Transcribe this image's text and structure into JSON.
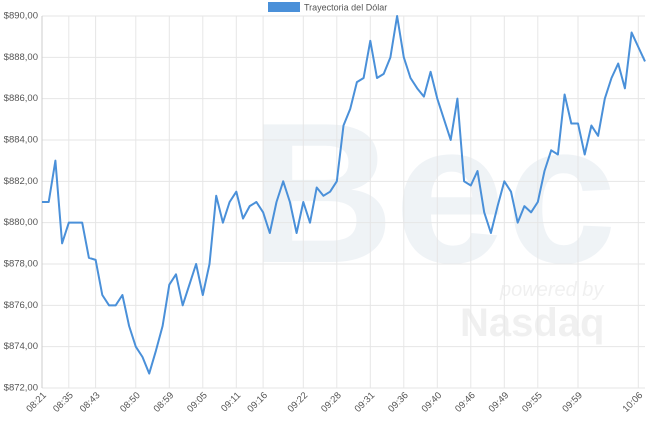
{
  "chart_data": {
    "type": "line",
    "series": [
      {
        "name": "Trayectoria del Dólar",
        "color": "#4a90d9",
        "values": [
          881,
          881,
          883,
          879,
          880,
          880,
          880,
          878.3,
          878.2,
          876.5,
          876,
          876,
          876.5,
          875,
          874,
          873.5,
          872.7,
          873.8,
          875,
          877,
          877.5,
          876,
          877,
          878,
          876.5,
          878,
          881.3,
          880,
          881,
          881.5,
          880.2,
          880.8,
          881,
          880.5,
          879.5,
          881,
          882,
          881,
          879.5,
          881,
          880,
          881.7,
          881.3,
          881.5,
          882,
          884.7,
          885.5,
          886.8,
          887,
          888.8,
          887,
          887.2,
          888,
          890,
          888,
          887,
          886.5,
          886.1,
          887.3,
          886,
          885,
          884,
          886,
          882,
          881.8,
          882.5,
          880.5,
          879.5,
          880.8,
          882,
          881.5,
          880,
          880.8,
          880.5,
          881,
          882.5,
          883.5,
          883.3,
          886.2,
          884.8,
          884.8,
          883.3,
          884.7,
          884.2,
          886,
          887,
          887.7,
          886.5,
          889.2,
          888.5,
          887.8
        ]
      }
    ],
    "categories": [
      "08:21",
      null,
      null,
      null,
      "08:35",
      null,
      null,
      null,
      "08:43",
      null,
      null,
      null,
      null,
      null,
      "08:50",
      null,
      null,
      null,
      null,
      "08:59",
      null,
      null,
      null,
      null,
      "09:05",
      null,
      null,
      null,
      null,
      "09:11",
      null,
      null,
      null,
      "09:16",
      null,
      null,
      null,
      null,
      null,
      "09:22",
      null,
      null,
      null,
      null,
      "09:28",
      null,
      null,
      null,
      null,
      "09:31",
      null,
      null,
      null,
      null,
      "09:36",
      null,
      null,
      null,
      null,
      "09:40",
      null,
      null,
      null,
      null,
      "09:46",
      null,
      null,
      null,
      null,
      "09:49",
      null,
      null,
      null,
      null,
      "09:55",
      null,
      null,
      null,
      null,
      null,
      "09:59",
      null,
      null,
      null,
      null,
      null,
      null,
      null,
      null,
      "10:06",
      null
    ],
    "ylim": [
      872,
      890
    ],
    "yticks": [
      {
        "value": 872,
        "label": "$872,00"
      },
      {
        "value": 874,
        "label": "$874,00"
      },
      {
        "value": 876,
        "label": "$876,00"
      },
      {
        "value": 878,
        "label": "$878,00"
      },
      {
        "value": 880,
        "label": "$880,00"
      },
      {
        "value": 882,
        "label": "$882,00"
      },
      {
        "value": 884,
        "label": "$884,00"
      },
      {
        "value": 886,
        "label": "$886,00"
      },
      {
        "value": 888,
        "label": "$888,00"
      },
      {
        "value": 890,
        "label": "$890,00"
      }
    ],
    "grid": true,
    "legend": "top",
    "watermark": {
      "brand": "Bec",
      "tagline": "powered by",
      "partner": "Nasdaq"
    }
  }
}
